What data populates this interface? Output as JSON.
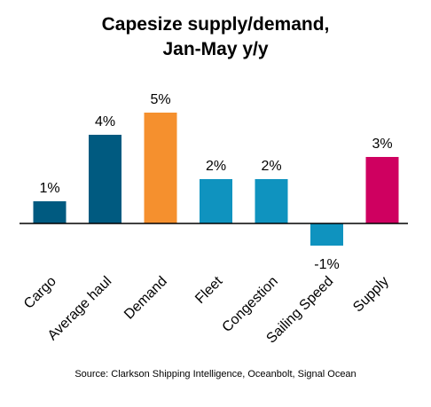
{
  "title_line1": "Capesize supply/demand,",
  "title_line2": "Jan-May y/y",
  "source": "Source: Clarkson Shipping Intelligence, Oceanbolt, Signal Ocean",
  "colors": {
    "dark_blue": "#005a80",
    "orange": "#f5902e",
    "light_blue": "#0f93bf",
    "magenta": "#cf0060",
    "axis": "#000000"
  },
  "chart_data": {
    "type": "bar",
    "title": "Capesize supply/demand, Jan-May y/y",
    "categories": [
      "Cargo",
      "Average haul",
      "Demand",
      "Fleet",
      "Congestion",
      "Sailing Speed",
      "Supply"
    ],
    "values": [
      1,
      4,
      5,
      2,
      2,
      -1,
      3
    ],
    "value_labels": [
      "1%",
      "4%",
      "5%",
      "2%",
      "2%",
      "-1%",
      "3%"
    ],
    "bar_colors": [
      "dark_blue",
      "dark_blue",
      "orange",
      "light_blue",
      "light_blue",
      "light_blue",
      "magenta"
    ],
    "ylim": [
      -1,
      5
    ],
    "grid": false,
    "legend": "none",
    "xlabel": "",
    "ylabel": ""
  }
}
